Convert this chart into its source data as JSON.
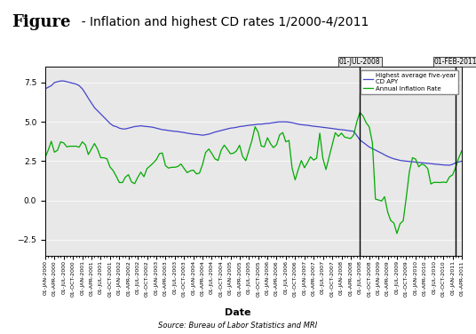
{
  "title_bold": "Figure",
  "title_rest": "  - Inflation and highest CD rates 1/2000-4/2011",
  "header_bg": "#d0d0d0",
  "plot_bg": "#e8e8e8",
  "xlabel": "Date",
  "source_text": "Source: Bureau of Labor Statistics and MRI",
  "vline1_label": "01-JUL-2008",
  "vline2_label": "01-FEB-2011",
  "vline1_date": "2008-07-01",
  "vline2_date": "2011-02-01",
  "legend": [
    "Highest average five-year\nCD APY",
    "Annual Inflation Rate"
  ],
  "line_colors": [
    "#4444cc",
    "#00aa00"
  ],
  "ylim": [
    -3.5,
    8.5
  ],
  "yticks": [
    -2.5,
    0.0,
    2.5,
    5.0,
    7.5
  ],
  "cd_dates": [
    "2000-01-01",
    "2000-02-01",
    "2000-03-01",
    "2000-04-01",
    "2000-05-01",
    "2000-06-01",
    "2000-07-01",
    "2000-08-01",
    "2000-09-01",
    "2000-10-01",
    "2000-11-01",
    "2000-12-01",
    "2001-01-01",
    "2001-02-01",
    "2001-03-01",
    "2001-04-01",
    "2001-05-01",
    "2001-06-01",
    "2001-07-01",
    "2001-08-01",
    "2001-09-01",
    "2001-10-01",
    "2001-11-01",
    "2001-12-01",
    "2002-01-01",
    "2002-02-01",
    "2002-03-01",
    "2002-04-01",
    "2002-05-01",
    "2002-06-01",
    "2002-07-01",
    "2002-08-01",
    "2002-09-01",
    "2002-10-01",
    "2002-11-01",
    "2002-12-01",
    "2003-01-01",
    "2003-02-01",
    "2003-03-01",
    "2003-04-01",
    "2003-05-01",
    "2003-06-01",
    "2003-07-01",
    "2003-08-01",
    "2003-09-01",
    "2003-10-01",
    "2003-11-01",
    "2003-12-01",
    "2004-01-01",
    "2004-02-01",
    "2004-03-01",
    "2004-04-01",
    "2004-05-01",
    "2004-06-01",
    "2004-07-01",
    "2004-08-01",
    "2004-09-01",
    "2004-10-01",
    "2004-11-01",
    "2004-12-01",
    "2005-01-01",
    "2005-02-01",
    "2005-03-01",
    "2005-04-01",
    "2005-05-01",
    "2005-06-01",
    "2005-07-01",
    "2005-08-01",
    "2005-09-01",
    "2005-10-01",
    "2005-11-01",
    "2005-12-01",
    "2006-01-01",
    "2006-02-01",
    "2006-03-01",
    "2006-04-01",
    "2006-05-01",
    "2006-06-01",
    "2006-07-01",
    "2006-08-01",
    "2006-09-01",
    "2006-10-01",
    "2006-11-01",
    "2006-12-01",
    "2007-01-01",
    "2007-02-01",
    "2007-03-01",
    "2007-04-01",
    "2007-05-01",
    "2007-06-01",
    "2007-07-01",
    "2007-08-01",
    "2007-09-01",
    "2007-10-01",
    "2007-11-01",
    "2007-12-01",
    "2008-01-01",
    "2008-02-01",
    "2008-03-01",
    "2008-04-01",
    "2008-05-01",
    "2008-06-01",
    "2008-07-01",
    "2008-08-01",
    "2008-09-01",
    "2008-10-01",
    "2008-11-01",
    "2008-12-01",
    "2009-01-01",
    "2009-02-01",
    "2009-03-01",
    "2009-04-01",
    "2009-05-01",
    "2009-06-01",
    "2009-07-01",
    "2009-08-01",
    "2009-09-01",
    "2009-10-01",
    "2009-11-01",
    "2009-12-01",
    "2010-01-01",
    "2010-02-01",
    "2010-03-01",
    "2010-04-01",
    "2010-05-01",
    "2010-06-01",
    "2010-07-01",
    "2010-08-01",
    "2010-09-01",
    "2010-10-01",
    "2010-11-01",
    "2010-12-01",
    "2011-01-01",
    "2011-02-01",
    "2011-03-01",
    "2011-04-01"
  ],
  "cd_values": [
    7.1,
    7.2,
    7.3,
    7.5,
    7.55,
    7.6,
    7.6,
    7.55,
    7.5,
    7.45,
    7.4,
    7.3,
    7.1,
    6.8,
    6.5,
    6.2,
    5.9,
    5.7,
    5.5,
    5.3,
    5.1,
    4.9,
    4.75,
    4.7,
    4.6,
    4.55,
    4.55,
    4.6,
    4.65,
    4.7,
    4.72,
    4.75,
    4.72,
    4.7,
    4.68,
    4.65,
    4.6,
    4.55,
    4.5,
    4.48,
    4.45,
    4.42,
    4.4,
    4.38,
    4.35,
    4.32,
    4.28,
    4.25,
    4.22,
    4.2,
    4.18,
    4.15,
    4.18,
    4.22,
    4.28,
    4.35,
    4.4,
    4.45,
    4.5,
    4.55,
    4.6,
    4.62,
    4.65,
    4.7,
    4.72,
    4.75,
    4.78,
    4.8,
    4.82,
    4.85,
    4.85,
    4.88,
    4.9,
    4.92,
    4.95,
    4.98,
    5.0,
    5.0,
    5.0,
    4.98,
    4.95,
    4.9,
    4.85,
    4.82,
    4.8,
    4.78,
    4.75,
    4.72,
    4.7,
    4.68,
    4.65,
    4.63,
    4.6,
    4.58,
    4.55,
    4.52,
    4.5,
    4.48,
    4.45,
    4.42,
    4.4,
    4.12,
    3.85,
    3.7,
    3.55,
    3.4,
    3.3,
    3.2,
    3.1,
    3.0,
    2.9,
    2.8,
    2.72,
    2.65,
    2.6,
    2.55,
    2.52,
    2.5,
    2.48,
    2.46,
    2.44,
    2.42,
    2.4,
    2.38,
    2.36,
    2.34,
    2.32,
    2.3,
    2.28,
    2.26,
    2.25,
    2.24,
    2.3,
    2.4,
    2.45,
    2.5
  ],
  "inf_values": [
    2.74,
    3.22,
    3.76,
    3.07,
    3.19,
    3.73,
    3.66,
    3.41,
    3.45,
    3.45,
    3.45,
    3.39,
    3.73,
    3.53,
    2.92,
    3.27,
    3.62,
    3.25,
    2.72,
    2.72,
    2.65,
    2.13,
    1.9,
    1.55,
    1.14,
    1.14,
    1.48,
    1.64,
    1.18,
    1.07,
    1.46,
    1.8,
    1.51,
    2.03,
    2.2,
    2.38,
    2.6,
    2.98,
    3.02,
    2.22,
    2.06,
    2.11,
    2.11,
    2.16,
    2.32,
    2.04,
    1.77,
    1.88,
    1.93,
    1.69,
    1.74,
    2.29,
    3.05,
    3.27,
    2.99,
    2.65,
    2.54,
    3.19,
    3.52,
    3.26,
    2.97,
    3.01,
    3.15,
    3.51,
    2.8,
    2.53,
    3.17,
    3.82,
    4.69,
    4.35,
    3.46,
    3.41,
    3.99,
    3.6,
    3.36,
    3.55,
    4.17,
    4.32,
    3.73,
    3.82,
    2.06,
    1.31,
    1.97,
    2.54,
    2.08,
    2.42,
    2.78,
    2.57,
    2.69,
    4.28,
    2.69,
    1.97,
    2.76,
    3.54,
    4.31,
    4.08,
    4.28,
    4.03,
    3.98,
    3.94,
    4.18,
    5.02,
    5.6,
    5.37,
    4.94,
    4.68,
    3.66,
    0.09,
    0.03,
    -0.03,
    0.24,
    -0.74,
    -1.28,
    -1.43,
    -2.1,
    -1.48,
    -1.29,
    0.19,
    1.84,
    2.72,
    2.63,
    2.14,
    2.31,
    2.24,
    2.02,
    1.05,
    1.15,
    1.15,
    1.14,
    1.17,
    1.14,
    1.5,
    1.63,
    2.11,
    2.68,
    3.16
  ]
}
